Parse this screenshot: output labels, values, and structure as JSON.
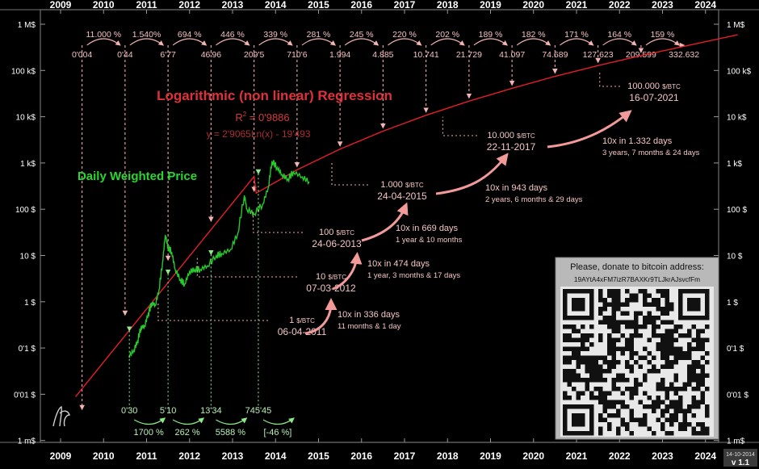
{
  "chart_data": {
    "type": "line",
    "scale": "log",
    "years": [
      "2009",
      "2010",
      "2011",
      "2012",
      "2013",
      "2014",
      "2015",
      "2016",
      "2017",
      "2018",
      "2019",
      "2020",
      "2021",
      "2022",
      "2023",
      "2024"
    ],
    "y_ticks": [
      "1 M$",
      "100 k$",
      "10 k$",
      "1 k$",
      "100 $",
      "10 $",
      "1 $",
      "0'1 $",
      "0'01 $",
      "1 m$"
    ],
    "ylim": [
      "1 m$",
      "1 M$"
    ],
    "growth_pct": [
      "11.000 %",
      "1.540%",
      "694 %",
      "446 %",
      "339 %",
      "281 %",
      "245 %",
      "220 %",
      "202 %",
      "189 %",
      "182 %",
      "171 %",
      "164 %",
      "159 %"
    ],
    "regression_values": [
      "0'004",
      "0'44",
      "6'77",
      "46'96",
      "209'5",
      "710'6",
      "1.994",
      "4.885",
      "10.741",
      "21.729",
      "41.097",
      "74.689",
      "127.623",
      "209.599",
      "332.632"
    ],
    "regression_title": "Logarithmic (non linear) Regression",
    "r2_prefix": "R",
    "r2_sup": "2",
    "r2_value": " = 0'9886",
    "equation": "y = 2'9065Ln(x) - 19'493",
    "series_label": "Daily Weighted Price",
    "price_series": [
      {
        "date": "2010-08-01",
        "usd": 0.065
      },
      {
        "date": "2010-09-15",
        "usd": 0.09
      },
      {
        "date": "2010-10-15",
        "usd": 0.14
      },
      {
        "date": "2010-11-15",
        "usd": 0.28
      },
      {
        "date": "2010-12-15",
        "usd": 0.3
      },
      {
        "date": "2011-01-15",
        "usd": 0.55
      },
      {
        "date": "2011-02-15",
        "usd": 0.95
      },
      {
        "date": "2011-03-15",
        "usd": 0.85
      },
      {
        "date": "2011-04-15",
        "usd": 1.8
      },
      {
        "date": "2011-05-15",
        "usd": 7
      },
      {
        "date": "2011-06-08",
        "usd": 28
      },
      {
        "date": "2011-07-01",
        "usd": 15
      },
      {
        "date": "2011-08-01",
        "usd": 12
      },
      {
        "date": "2011-09-01",
        "usd": 5
      },
      {
        "date": "2011-10-15",
        "usd": 3
      },
      {
        "date": "2011-11-20",
        "usd": 2.4
      },
      {
        "date": "2012-01-01",
        "usd": 4.5
      },
      {
        "date": "2012-02-15",
        "usd": 5
      },
      {
        "date": "2012-04-01",
        "usd": 5
      },
      {
        "date": "2012-06-01",
        "usd": 6
      },
      {
        "date": "2012-08-15",
        "usd": 10
      },
      {
        "date": "2012-10-01",
        "usd": 11
      },
      {
        "date": "2012-12-15",
        "usd": 13.5
      },
      {
        "date": "2013-02-15",
        "usd": 30
      },
      {
        "date": "2013-04-10",
        "usd": 200
      },
      {
        "date": "2013-05-01",
        "usd": 100
      },
      {
        "date": "2013-07-01",
        "usd": 80
      },
      {
        "date": "2013-09-15",
        "usd": 130
      },
      {
        "date": "2013-11-01",
        "usd": 300
      },
      {
        "date": "2013-12-01",
        "usd": 1100
      },
      {
        "date": "2014-01-15",
        "usd": 800
      },
      {
        "date": "2014-02-25",
        "usd": 560
      },
      {
        "date": "2014-04-15",
        "usd": 450
      },
      {
        "date": "2014-06-01",
        "usd": 640
      },
      {
        "date": "2014-08-15",
        "usd": 500
      },
      {
        "date": "2014-10-14",
        "usd": 390
      }
    ],
    "milestones": [
      {
        "price_label": "1 ",
        "unit": "$/BTC",
        "date": "06-04-2011"
      },
      {
        "price_label": "10 ",
        "unit": "$/BTC",
        "date": "07-03-2012"
      },
      {
        "price_label": "100 ",
        "unit": "$/BTC",
        "date": "24-06-2013"
      },
      {
        "price_label": "1.000 ",
        "unit": "$/BTC",
        "date": "24-04-2015"
      },
      {
        "price_label": "10.000 ",
        "unit": "$/BTC",
        "date": "22-11-2017"
      },
      {
        "price_label": "100.000 ",
        "unit": "$/BTC",
        "date": "16-07-2021"
      }
    ],
    "tenx_notes": [
      {
        "line1": "10x in 336 days",
        "line2": "11 months & 1 day"
      },
      {
        "line1": "10x in 474 days",
        "line2": "1 year, 3 months & 17 days"
      },
      {
        "line1": "10x in 669 days",
        "line2": "1 year & 10 months"
      },
      {
        "line1": "10x in 943 days",
        "line2": "2 years, 6 months & 29 days"
      },
      {
        "line1": "10x in 1.332 days",
        "line2": "3 years, 7 months & 24 days"
      }
    ],
    "green_values": [
      "0'30",
      "5'10",
      "13'34",
      "745'45"
    ],
    "green_pct": [
      "1700 %",
      "262 %",
      "5588 %",
      "[-46 %]"
    ]
  },
  "donate_text": "Please, donate to bitcoin address:",
  "donate_address": "19AYtA4xFM7izR7BAXKr9TLJkrAJsvcfFm",
  "date_stamp": "14-10-2014",
  "version": "v 1.1"
}
